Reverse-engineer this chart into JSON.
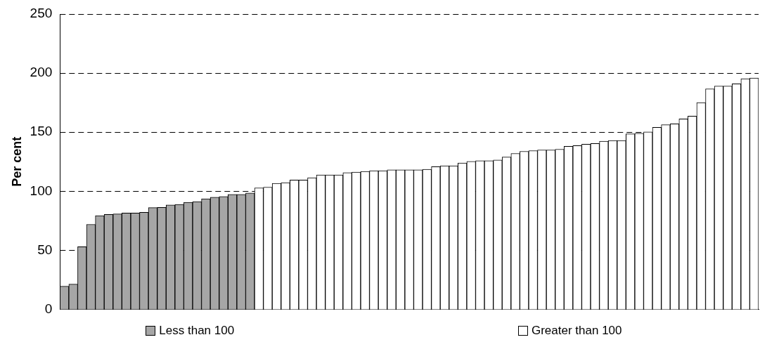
{
  "chart_data": {
    "type": "bar",
    "ylabel": "Per cent",
    "categories": [
      null,
      null,
      null,
      null,
      null,
      null,
      null,
      null,
      null,
      null,
      null,
      null,
      null,
      null,
      null,
      null,
      null,
      null,
      null,
      null,
      null,
      null,
      null,
      null,
      null,
      null,
      null,
      null,
      null,
      null,
      null,
      null,
      null,
      null,
      null,
      null,
      null,
      null,
      null,
      null,
      null,
      null,
      null,
      null,
      null,
      null,
      null,
      null,
      null,
      null,
      null,
      null,
      null,
      null,
      null,
      null,
      null,
      null,
      null,
      null,
      null,
      null,
      null,
      null,
      null,
      null,
      null,
      null,
      null,
      null,
      null,
      null,
      null,
      null,
      null,
      null,
      null,
      null,
      null
    ],
    "series": [
      {
        "name": "Less than 100",
        "color": "#a6a6a6",
        "values": [
          19.6,
          21.4,
          53,
          72,
          79.3,
          80.4,
          80.8,
          81.6,
          81.6,
          82.2,
          86.2,
          86.4,
          88.5,
          88.9,
          90.7,
          91.3,
          93.7,
          95,
          95.6,
          97.4,
          97.4,
          98.6,
          null,
          null,
          null,
          null,
          null,
          null,
          null,
          null,
          null,
          null,
          null,
          null,
          null,
          null,
          null,
          null,
          null,
          null,
          null,
          null,
          null,
          null,
          null,
          null,
          null,
          null,
          null,
          null,
          null,
          null,
          null,
          null,
          null,
          null,
          null,
          null,
          null,
          null,
          null,
          null,
          null,
          null,
          null,
          null,
          null,
          null,
          null,
          null,
          null,
          null,
          null,
          null,
          null,
          null,
          null,
          null,
          null
        ]
      },
      {
        "name": "Greater than 100",
        "color": "#ffffff",
        "values": [
          null,
          null,
          null,
          null,
          null,
          null,
          null,
          null,
          null,
          null,
          null,
          null,
          null,
          null,
          null,
          null,
          null,
          null,
          null,
          null,
          null,
          null,
          102.9,
          103.5,
          106.7,
          107.3,
          109.5,
          109.5,
          111.5,
          113.8,
          113.8,
          113.8,
          115.8,
          116.2,
          116.8,
          117.4,
          117.4,
          118.2,
          118.2,
          118.2,
          118.2,
          118.6,
          120.8,
          121.5,
          121.5,
          123.9,
          125.3,
          125.9,
          125.9,
          126.5,
          129,
          132,
          133.8,
          134.4,
          135,
          135,
          135.6,
          138,
          138.6,
          139.9,
          140.5,
          142.3,
          142.9,
          142.9,
          148.6,
          149,
          150.2,
          154.1,
          156.3,
          157.1,
          161.2,
          163.6,
          175.1,
          186.7,
          189.1,
          189.1,
          190.9,
          195.2,
          195.8
        ]
      }
    ],
    "ylim": [
      0,
      250
    ],
    "yticks": [
      0,
      50,
      100,
      150,
      200,
      250
    ],
    "grid": "y",
    "legend": "bottom",
    "tick_labels": "y"
  }
}
